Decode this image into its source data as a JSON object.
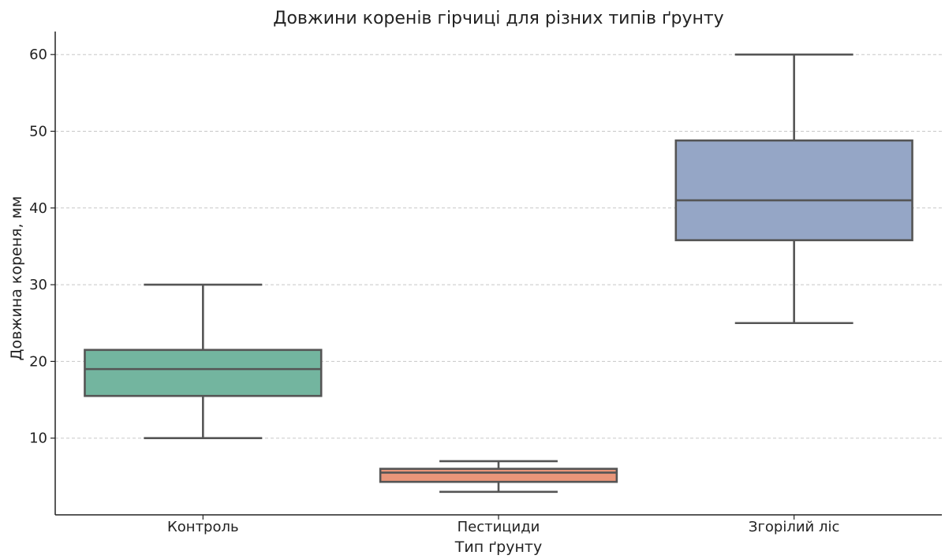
{
  "chart_data": {
    "type": "box",
    "title": "Довжини коренів гірчиці для різних типів ґрунту",
    "xlabel": "Тип ґрунту",
    "ylabel": "Довжина кореня, мм",
    "ylim": [
      0,
      63
    ],
    "yticks": [
      10,
      20,
      30,
      40,
      50,
      60
    ],
    "grid": true,
    "categories": [
      "Контроль",
      "Пестициди",
      "Згорілий ліс"
    ],
    "boxes": [
      {
        "category": "Контроль",
        "whisker_low": 10,
        "q1": 15.5,
        "median": 19,
        "q3": 21.5,
        "whisker_high": 30,
        "color": "#73b59f"
      },
      {
        "category": "Пестициди",
        "whisker_low": 3,
        "q1": 4.3,
        "median": 5.5,
        "q3": 6,
        "whisker_high": 7,
        "color": "#e9967a"
      },
      {
        "category": "Згорілий ліс",
        "whisker_low": 25,
        "q1": 35.8,
        "median": 41,
        "q3": 48.8,
        "whisker_high": 60,
        "color": "#95a6c6"
      }
    ]
  }
}
